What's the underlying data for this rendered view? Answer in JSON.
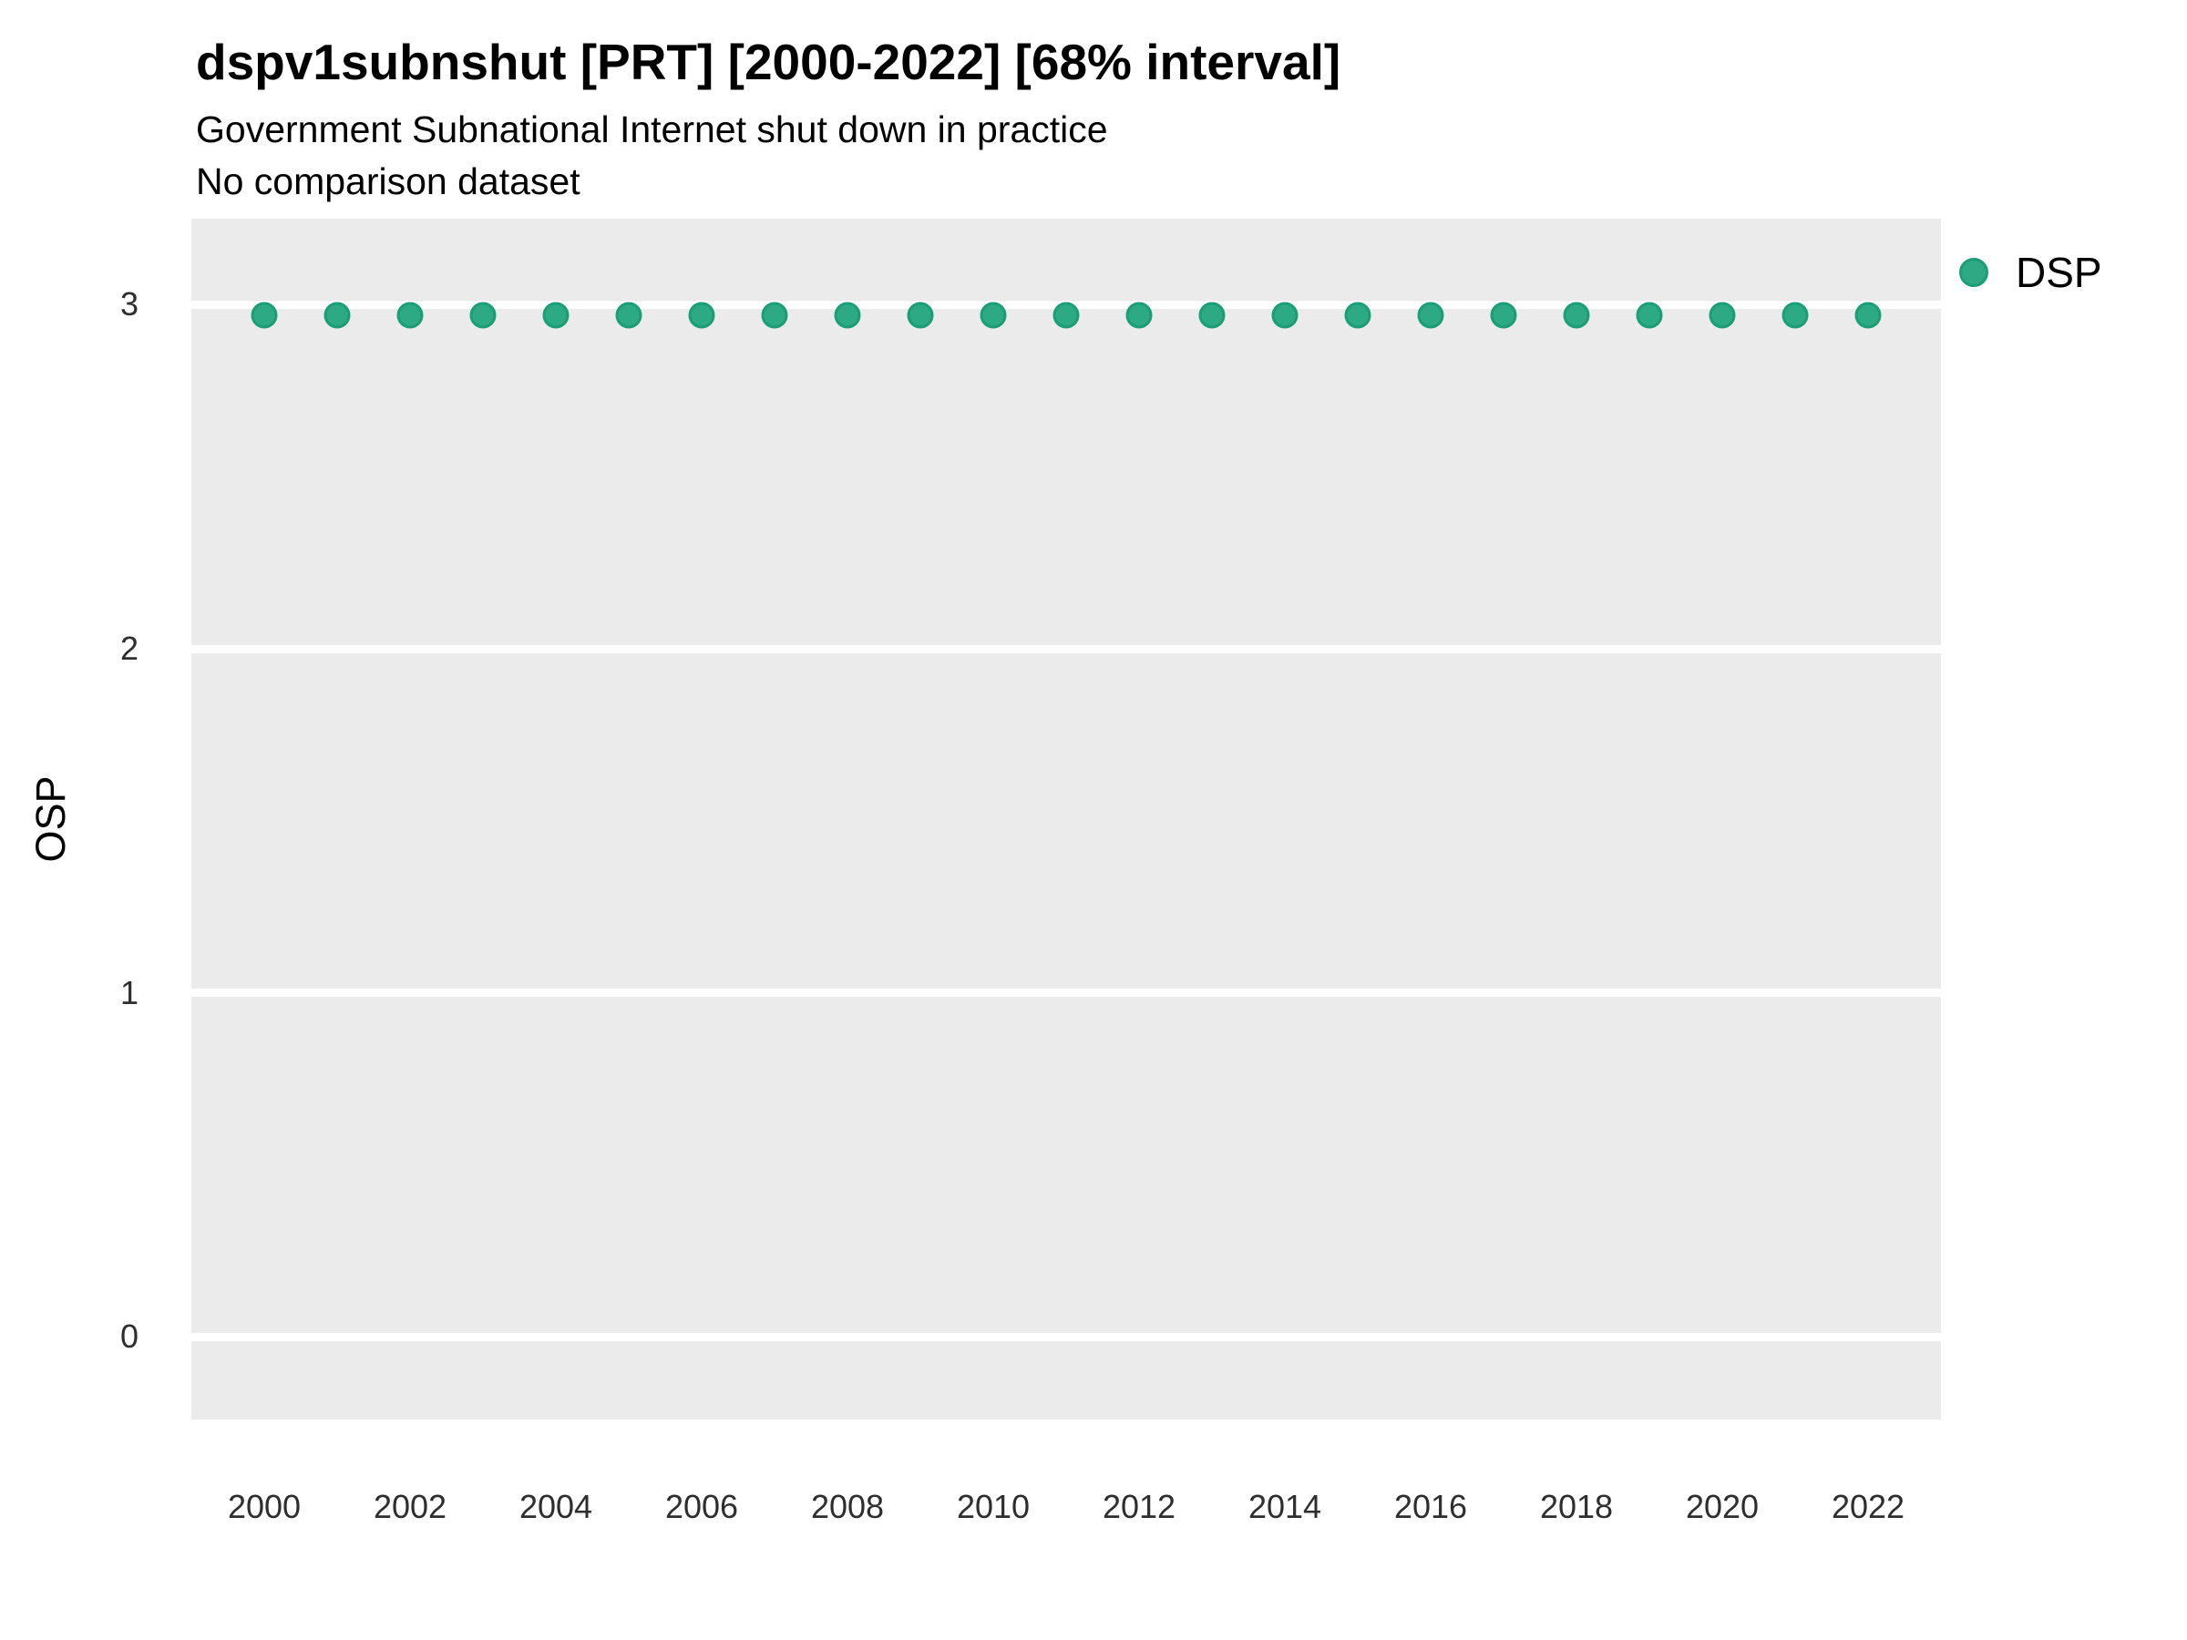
{
  "chart_data": {
    "type": "scatter",
    "title": "dspv1subnshut [PRT] [2000-2022] [68% interval]",
    "subtitle": "Government Subnational Internet shut down in practice",
    "note": "No comparison dataset",
    "xlabel": "",
    "ylabel": "OSP",
    "x": [
      2000,
      2001,
      2002,
      2003,
      2004,
      2005,
      2006,
      2007,
      2008,
      2009,
      2010,
      2011,
      2012,
      2013,
      2014,
      2015,
      2016,
      2017,
      2018,
      2019,
      2020,
      2021,
      2022
    ],
    "series": [
      {
        "name": "DSP",
        "values": [
          2.97,
          2.97,
          2.97,
          2.97,
          2.97,
          2.97,
          2.97,
          2.97,
          2.97,
          2.97,
          2.97,
          2.97,
          2.97,
          2.97,
          2.97,
          2.97,
          2.97,
          2.97,
          2.97,
          2.97,
          2.97,
          2.97,
          2.97
        ],
        "marker_fill": "#2da983",
        "marker_stroke": "#1b9e77"
      }
    ],
    "xlim": [
      1999,
      2023
    ],
    "ylim": [
      -0.24,
      3.25
    ],
    "x_ticks": [
      2000,
      2002,
      2004,
      2006,
      2008,
      2010,
      2012,
      2014,
      2016,
      2018,
      2020,
      2022
    ],
    "y_ticks": [
      0,
      1,
      2,
      3
    ],
    "grid": "horizontal-major-only",
    "grid_color": "#ffffff",
    "panel_bg": "#ebebeb",
    "legend_position": "right",
    "legend": {
      "items": [
        {
          "label": "DSP",
          "color": "#2da983"
        }
      ]
    }
  }
}
